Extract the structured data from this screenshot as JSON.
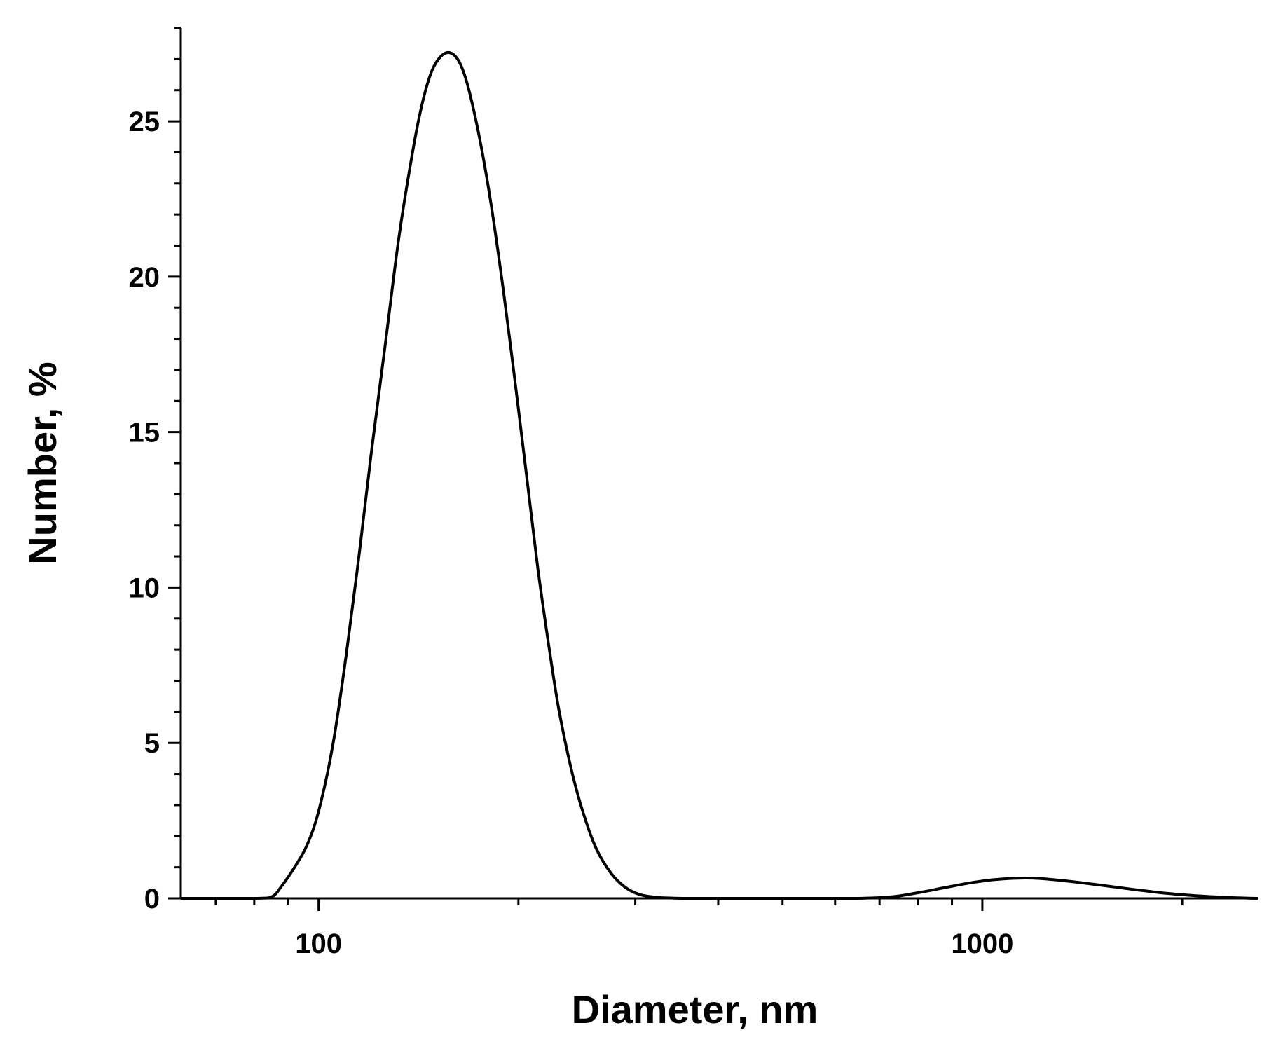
{
  "chart_data": {
    "type": "line",
    "xlabel": "Diameter, nm",
    "ylabel": "Number, %",
    "xscale": "log",
    "xlim": [
      62,
      2600
    ],
    "ylim": [
      0,
      28
    ],
    "grid": false,
    "legend": "none",
    "x_ticks": [
      100,
      1000
    ],
    "x_tick_labels": [
      "100",
      "1000"
    ],
    "y_ticks": [
      0,
      5,
      10,
      15,
      20,
      25
    ],
    "y_tick_labels": [
      "0",
      "5",
      "10",
      "15",
      "20",
      "25"
    ],
    "y_minor_step": 1,
    "series": [
      {
        "color": "#000000",
        "x": [
          62,
          80,
          85,
          88,
          92,
          96,
          100,
          105,
          110,
          115,
          120,
          126,
          132,
          138,
          143,
          148,
          153,
          158,
          163,
          168,
          175,
          182,
          190,
          198,
          206,
          214,
          222,
          230,
          240,
          250,
          262,
          276,
          290,
          305,
          325,
          360,
          420,
          500,
          650,
          730,
          800,
          880,
          960,
          1040,
          1130,
          1220,
          1350,
          1500,
          1700,
          1900,
          2150,
          2400,
          2600
        ],
        "y": [
          0,
          0,
          0.05,
          0.4,
          1.0,
          1.7,
          2.8,
          4.9,
          7.8,
          11.0,
          14.3,
          17.8,
          21.2,
          23.8,
          25.5,
          26.6,
          27.1,
          27.2,
          26.9,
          26.1,
          24.4,
          22.3,
          19.5,
          16.5,
          13.5,
          10.6,
          8.2,
          6.1,
          4.2,
          2.8,
          1.6,
          0.8,
          0.35,
          0.12,
          0.03,
          0,
          0,
          0,
          0,
          0.05,
          0.18,
          0.35,
          0.5,
          0.6,
          0.65,
          0.64,
          0.55,
          0.43,
          0.28,
          0.16,
          0.07,
          0.02,
          0
        ]
      }
    ]
  }
}
